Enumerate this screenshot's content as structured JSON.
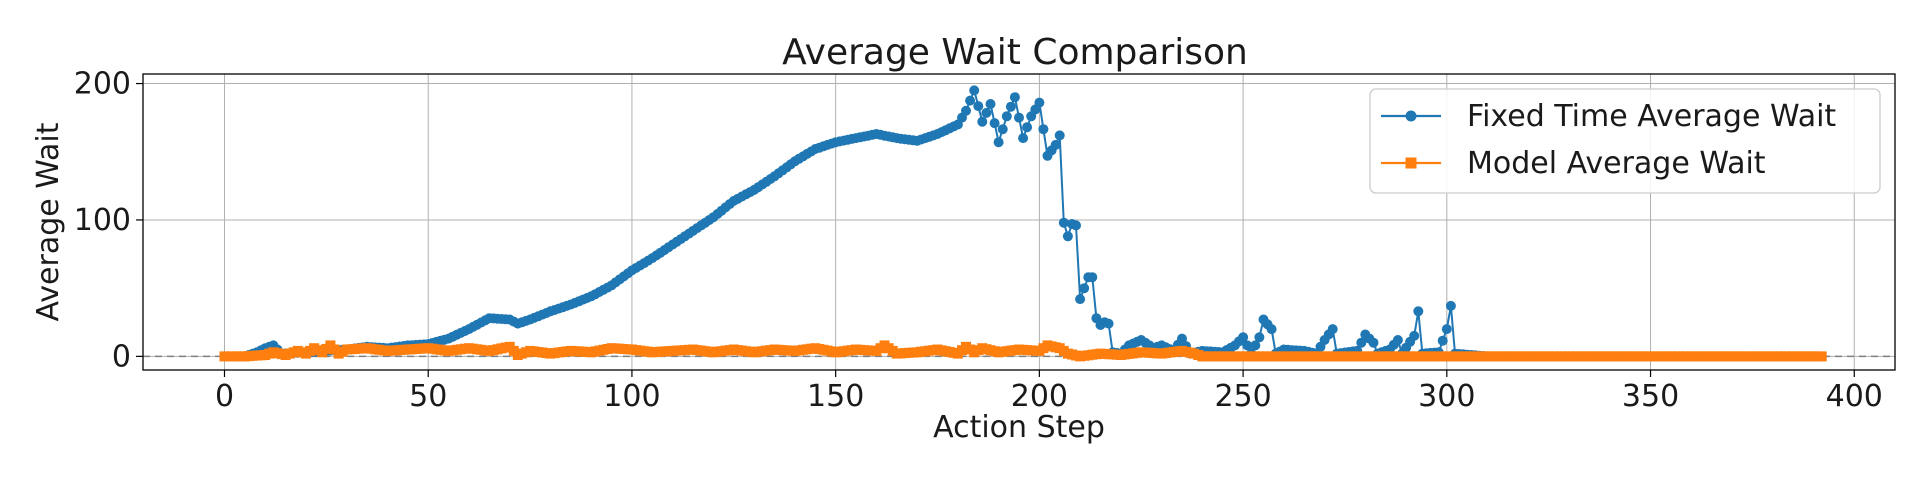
{
  "chart_data": {
    "type": "line",
    "title": "Average Wait Comparison",
    "xlabel": "Action Step",
    "ylabel": "Average Wait",
    "xlim": [
      -20,
      410
    ],
    "ylim": [
      -10,
      207
    ],
    "xticks": [
      0,
      50,
      100,
      150,
      200,
      250,
      300,
      350,
      400
    ],
    "yticks": [
      0,
      100,
      200
    ],
    "grid": true,
    "legend": "top-right",
    "reference_line": {
      "y": 0,
      "style": "dashed",
      "color": "#808080"
    },
    "series": [
      {
        "name": "Fixed Time Average Wait",
        "color": "#1f77b4",
        "marker": "circle",
        "keypoints": [
          [
            0,
            0
          ],
          [
            5,
            0
          ],
          [
            8,
            3
          ],
          [
            10,
            6
          ],
          [
            12,
            8
          ],
          [
            14,
            2
          ],
          [
            20,
            3
          ],
          [
            25,
            4
          ],
          [
            30,
            5
          ],
          [
            35,
            7
          ],
          [
            40,
            6
          ],
          [
            45,
            8
          ],
          [
            50,
            9
          ],
          [
            55,
            13
          ],
          [
            60,
            20
          ],
          [
            65,
            28
          ],
          [
            70,
            27
          ],
          [
            72,
            24
          ],
          [
            75,
            27
          ],
          [
            80,
            33
          ],
          [
            85,
            38
          ],
          [
            90,
            44
          ],
          [
            95,
            52
          ],
          [
            100,
            63
          ],
          [
            105,
            72
          ],
          [
            110,
            82
          ],
          [
            115,
            92
          ],
          [
            120,
            102
          ],
          [
            125,
            114
          ],
          [
            130,
            122
          ],
          [
            135,
            132
          ],
          [
            140,
            143
          ],
          [
            145,
            152
          ],
          [
            150,
            157
          ],
          [
            155,
            160
          ],
          [
            160,
            163
          ],
          [
            165,
            160
          ],
          [
            170,
            158
          ],
          [
            175,
            163
          ],
          [
            180,
            170
          ],
          [
            182,
            180
          ],
          [
            184,
            195
          ],
          [
            186,
            172
          ],
          [
            188,
            185
          ],
          [
            190,
            157
          ],
          [
            192,
            176
          ],
          [
            194,
            190
          ],
          [
            196,
            160
          ],
          [
            198,
            176
          ],
          [
            200,
            186
          ],
          [
            202,
            147
          ],
          [
            204,
            155
          ],
          [
            205,
            162
          ],
          [
            206,
            98
          ],
          [
            207,
            88
          ],
          [
            208,
            97
          ],
          [
            209,
            96
          ],
          [
            210,
            42
          ],
          [
            212,
            58
          ],
          [
            213,
            58
          ],
          [
            214,
            28
          ],
          [
            215,
            23
          ],
          [
            216,
            25
          ],
          [
            217,
            24
          ],
          [
            218,
            3
          ],
          [
            220,
            2
          ],
          [
            222,
            8
          ],
          [
            225,
            12
          ],
          [
            228,
            6
          ],
          [
            230,
            8
          ],
          [
            233,
            4
          ],
          [
            235,
            13
          ],
          [
            237,
            2
          ],
          [
            240,
            4
          ],
          [
            245,
            3
          ],
          [
            248,
            8
          ],
          [
            250,
            14
          ],
          [
            252,
            2
          ],
          [
            254,
            14
          ],
          [
            255,
            27
          ],
          [
            257,
            20
          ],
          [
            258,
            2
          ],
          [
            260,
            5
          ],
          [
            265,
            4
          ],
          [
            268,
            2
          ],
          [
            270,
            12
          ],
          [
            272,
            20
          ],
          [
            273,
            2
          ],
          [
            278,
            4
          ],
          [
            280,
            16
          ],
          [
            282,
            10
          ],
          [
            283,
            2
          ],
          [
            286,
            5
          ],
          [
            288,
            12
          ],
          [
            289,
            2
          ],
          [
            292,
            15
          ],
          [
            293,
            33
          ],
          [
            294,
            2
          ],
          [
            298,
            3
          ],
          [
            300,
            20
          ],
          [
            301,
            37
          ],
          [
            302,
            2
          ],
          [
            310,
            0
          ],
          [
            392,
            0
          ]
        ]
      },
      {
        "name": "Model Average Wait",
        "color": "#ff7f0e",
        "marker": "square",
        "keypoints": [
          [
            0,
            0
          ],
          [
            5,
            0
          ],
          [
            10,
            1
          ],
          [
            12,
            3
          ],
          [
            15,
            1
          ],
          [
            18,
            4
          ],
          [
            20,
            2
          ],
          [
            22,
            6
          ],
          [
            24,
            3
          ],
          [
            26,
            8
          ],
          [
            28,
            2
          ],
          [
            30,
            5
          ],
          [
            35,
            6
          ],
          [
            40,
            4
          ],
          [
            45,
            5
          ],
          [
            50,
            6
          ],
          [
            55,
            4
          ],
          [
            60,
            6
          ],
          [
            65,
            4
          ],
          [
            70,
            7
          ],
          [
            72,
            1
          ],
          [
            75,
            4
          ],
          [
            80,
            2
          ],
          [
            85,
            4
          ],
          [
            90,
            3
          ],
          [
            95,
            6
          ],
          [
            100,
            5
          ],
          [
            105,
            3
          ],
          [
            110,
            4
          ],
          [
            115,
            5
          ],
          [
            120,
            3
          ],
          [
            125,
            5
          ],
          [
            130,
            3
          ],
          [
            135,
            5
          ],
          [
            140,
            4
          ],
          [
            145,
            6
          ],
          [
            150,
            3
          ],
          [
            155,
            5
          ],
          [
            160,
            4
          ],
          [
            162,
            8
          ],
          [
            165,
            2
          ],
          [
            170,
            3
          ],
          [
            175,
            5
          ],
          [
            180,
            2
          ],
          [
            182,
            7
          ],
          [
            184,
            3
          ],
          [
            186,
            6
          ],
          [
            190,
            3
          ],
          [
            195,
            5
          ],
          [
            200,
            4
          ],
          [
            202,
            8
          ],
          [
            205,
            6
          ],
          [
            207,
            2
          ],
          [
            210,
            0
          ],
          [
            215,
            2
          ],
          [
            220,
            1
          ],
          [
            225,
            3
          ],
          [
            230,
            2
          ],
          [
            235,
            4
          ],
          [
            238,
            2
          ],
          [
            240,
            0
          ],
          [
            392,
            0
          ]
        ]
      }
    ]
  }
}
